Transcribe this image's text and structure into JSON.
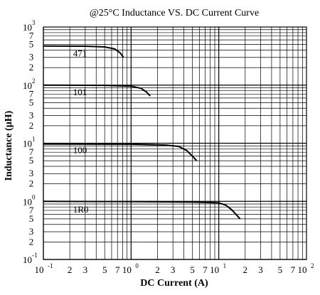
{
  "chart_data": {
    "type": "line",
    "title": "@25°C Inductance VS. DC Current Curve",
    "xlabel": "DC Current (A)",
    "ylabel": "Inductance (µH)",
    "x_scale": "log",
    "y_scale": "log",
    "xlim": [
      0.1,
      100
    ],
    "ylim": [
      0.1,
      1000
    ],
    "grid": true,
    "x_major_ticks": [
      {
        "base": "10",
        "exp": "-1",
        "value": 0.1
      },
      {
        "base": "10",
        "exp": "0",
        "value": 1
      },
      {
        "base": "10",
        "exp": "1",
        "value": 10
      },
      {
        "base": "10",
        "exp": "2",
        "value": 100
      }
    ],
    "x_minor_tick_labels": [
      {
        "label": "2",
        "value": 0.2
      },
      {
        "label": "3",
        "value": 0.3
      },
      {
        "label": "5",
        "value": 0.5
      },
      {
        "label": "7",
        "value": 0.7
      },
      {
        "label": "2",
        "value": 2
      },
      {
        "label": "3",
        "value": 3
      },
      {
        "label": "5",
        "value": 5
      },
      {
        "label": "7",
        "value": 7
      },
      {
        "label": "2",
        "value": 20
      },
      {
        "label": "3",
        "value": 30
      },
      {
        "label": "5",
        "value": 50
      },
      {
        "label": "7",
        "value": 70
      }
    ],
    "y_major_ticks": [
      {
        "base": "10",
        "exp": "-1",
        "value": 0.1
      },
      {
        "base": "10",
        "exp": "0",
        "value": 1
      },
      {
        "base": "10",
        "exp": "1",
        "value": 10
      },
      {
        "base": "10",
        "exp": "2",
        "value": 100
      },
      {
        "base": "10",
        "exp": "3",
        "value": 1000
      }
    ],
    "y_minor_tick_labels": [
      {
        "label": "2",
        "value": 0.2
      },
      {
        "label": "3",
        "value": 0.3
      },
      {
        "label": "5",
        "value": 0.5
      },
      {
        "label": "7",
        "value": 0.7
      },
      {
        "label": "2",
        "value": 2
      },
      {
        "label": "3",
        "value": 3
      },
      {
        "label": "5",
        "value": 5
      },
      {
        "label": "7",
        "value": 7
      },
      {
        "label": "2",
        "value": 20
      },
      {
        "label": "3",
        "value": 30
      },
      {
        "label": "5",
        "value": 50
      },
      {
        "label": "7",
        "value": 70
      },
      {
        "label": "2",
        "value": 200
      },
      {
        "label": "3",
        "value": 300
      },
      {
        "label": "5",
        "value": 500
      },
      {
        "label": "7",
        "value": 700
      }
    ],
    "series": [
      {
        "name": "471",
        "points": [
          [
            0.1,
            470
          ],
          [
            0.3,
            468
          ],
          [
            0.5,
            455
          ],
          [
            0.65,
            420
          ],
          [
            0.75,
            360
          ],
          [
            0.82,
            300
          ]
        ],
        "label_at": [
          0.15,
          350
        ]
      },
      {
        "name": "101",
        "points": [
          [
            0.1,
            100
          ],
          [
            0.5,
            99
          ],
          [
            1.0,
            96
          ],
          [
            1.3,
            88
          ],
          [
            1.5,
            76
          ],
          [
            1.65,
            65
          ]
        ],
        "label_at": [
          0.15,
          75
        ]
      },
      {
        "name": "100",
        "points": [
          [
            0.1,
            9.7
          ],
          [
            1,
            9.6
          ],
          [
            2.5,
            9.3
          ],
          [
            3.5,
            8.8
          ],
          [
            4.3,
            7.5
          ],
          [
            5.0,
            6.0
          ],
          [
            5.6,
            5.0
          ]
        ],
        "label_at": [
          0.15,
          7.5
        ]
      },
      {
        "name": "1R0",
        "points": [
          [
            0.1,
            1.0
          ],
          [
            1,
            0.99
          ],
          [
            5,
            0.97
          ],
          [
            10,
            0.94
          ],
          [
            12,
            0.86
          ],
          [
            14,
            0.72
          ],
          [
            16,
            0.58
          ],
          [
            17.5,
            0.5
          ]
        ],
        "label_at": [
          0.15,
          0.72
        ]
      }
    ]
  }
}
